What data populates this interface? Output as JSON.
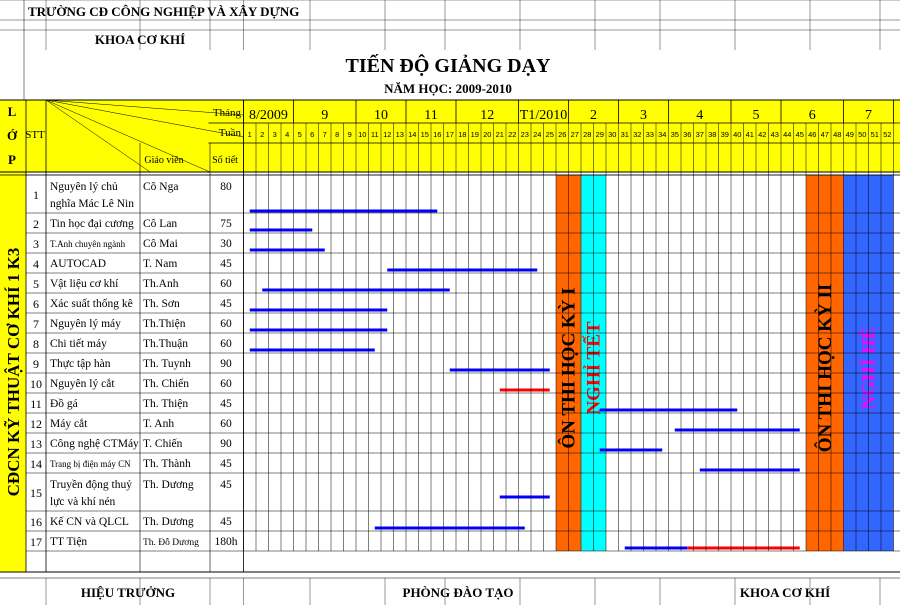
{
  "header": {
    "school": "TRƯỜNG CĐ CÔNG NGHIỆP VÀ XÂY DỰNG",
    "department": "KHOA CƠ KHÍ",
    "title": "TIẾN ĐỘ GIẢNG DẠY",
    "year": "NĂM HỌC: 2009-2010"
  },
  "table_header": {
    "lop_letters": [
      "L",
      "Ớ",
      "P"
    ],
    "stt": "STT",
    "thang": "Tháng",
    "tuan": "Tuần",
    "giao_vien": "Giáo viên",
    "so_tiet": "Số tiết"
  },
  "class_label": "CĐCN KỸ THUẬT CƠ KHÍ 1 K3",
  "months": [
    {
      "label": "8/2009",
      "start_week": 1,
      "end_week": 4
    },
    {
      "label": "9",
      "start_week": 5,
      "end_week": 9
    },
    {
      "label": "10",
      "start_week": 10,
      "end_week": 13
    },
    {
      "label": "11",
      "start_week": 14,
      "end_week": 17
    },
    {
      "label": "12",
      "start_week": 18,
      "end_week": 22
    },
    {
      "label": "T1/2010",
      "start_week": 23,
      "end_week": 26
    },
    {
      "label": "2",
      "start_week": 27,
      "end_week": 30
    },
    {
      "label": "3",
      "start_week": 31,
      "end_week": 34
    },
    {
      "label": "4",
      "start_week": 35,
      "end_week": 39
    },
    {
      "label": "5",
      "start_week": 40,
      "end_week": 43
    },
    {
      "label": "6",
      "start_week": 44,
      "end_week": 48
    },
    {
      "label": "7",
      "start_week": 49,
      "end_week": 52
    }
  ],
  "week_count": 52,
  "courses": [
    {
      "stt": "1",
      "name": [
        "Nguyên lý chủ",
        "nghĩa Mác Lê Nin"
      ],
      "teacher": "Cô Nga",
      "hours": "80",
      "bars": [
        {
          "start": 1.5,
          "end": 16.5,
          "color": "#0000ff"
        }
      ]
    },
    {
      "stt": "2",
      "name": [
        "Tin học đại cương"
      ],
      "teacher": "Cô Lan",
      "hours": "75",
      "bars": [
        {
          "start": 1.5,
          "end": 6.5,
          "color": "#0000ff"
        }
      ]
    },
    {
      "stt": "3",
      "name": [
        "T.Anh chuyên ngành"
      ],
      "teacher": "Cô Mai",
      "hours": "30",
      "bars": [
        {
          "start": 1.5,
          "end": 7.5,
          "color": "#0000ff"
        }
      ]
    },
    {
      "stt": "4",
      "name": [
        "AUTOCAD"
      ],
      "teacher": "T. Nam",
      "hours": "45",
      "bars": [
        {
          "start": 12.5,
          "end": 24.5,
          "color": "#0000ff"
        }
      ]
    },
    {
      "stt": "5",
      "name": [
        "Vật liệu cơ khí"
      ],
      "teacher": "Th.Anh",
      "hours": "60",
      "bars": [
        {
          "start": 2.5,
          "end": 17.5,
          "color": "#0000ff"
        }
      ]
    },
    {
      "stt": "6",
      "name": [
        "Xác suất thống kê"
      ],
      "teacher": "Th. Sơn",
      "hours": "45",
      "bars": [
        {
          "start": 1.5,
          "end": 12.5,
          "color": "#0000ff"
        }
      ]
    },
    {
      "stt": "7",
      "name": [
        "Nguyên lý máy"
      ],
      "teacher": "Th.Thiện",
      "hours": "60",
      "bars": [
        {
          "start": 1.5,
          "end": 12.5,
          "color": "#0000ff"
        }
      ]
    },
    {
      "stt": "8",
      "name": [
        "Chi tiết máy"
      ],
      "teacher": "Th.Thuận",
      "hours": "60",
      "bars": [
        {
          "start": 1.5,
          "end": 11.5,
          "color": "#0000ff"
        }
      ]
    },
    {
      "stt": "9",
      "name": [
        "Thực tập hàn"
      ],
      "teacher": "Th. Tuynh",
      "hours": "90",
      "bars": [
        {
          "start": 17.5,
          "end": 25.5,
          "color": "#0000ff"
        }
      ]
    },
    {
      "stt": "10",
      "name": [
        "Nguyên lý cắt"
      ],
      "teacher": "Th. Chiến",
      "hours": "60",
      "bars": [
        {
          "start": 21.5,
          "end": 25.5,
          "color": "#ff0000"
        }
      ]
    },
    {
      "stt": "11",
      "name": [
        "Đồ gá"
      ],
      "teacher": "Th. Thiện",
      "hours": "45",
      "bars": [
        {
          "start": 29.5,
          "end": 40.5,
          "color": "#0000ff"
        }
      ]
    },
    {
      "stt": "12",
      "name": [
        "Máy cắt"
      ],
      "teacher": "T. Anh",
      "hours": "60",
      "bars": [
        {
          "start": 35.5,
          "end": 45.5,
          "color": "#0000ff"
        }
      ]
    },
    {
      "stt": "13",
      "name": [
        "Công nghệ CTMáy"
      ],
      "teacher": "T. Chiến",
      "hours": "90",
      "bars": [
        {
          "start": 29.5,
          "end": 34.5,
          "color": "#0000ff"
        }
      ]
    },
    {
      "stt": "14",
      "name": [
        "Trang bị điện máy CN"
      ],
      "teacher": "Th. Thành",
      "hours": "45",
      "bars": [
        {
          "start": 37.5,
          "end": 45.5,
          "color": "#0000ff"
        }
      ]
    },
    {
      "stt": "15",
      "name": [
        "Truyền động thuỷ",
        "lực và khí nén"
      ],
      "teacher": "Th. Dương",
      "hours": "45",
      "bars": [
        {
          "start": 21.5,
          "end": 25.5,
          "color": "#0000ff"
        }
      ]
    },
    {
      "stt": "16",
      "name": [
        "Kế CN và QLCL"
      ],
      "teacher": "Th. Dương",
      "hours": "45",
      "bars": [
        {
          "start": 11.5,
          "end": 23.5,
          "color": "#0000ff"
        }
      ]
    },
    {
      "stt": "17",
      "name": [
        "TT Tiện"
      ],
      "teacher": "Th. Đỗ Dương",
      "hours": "180h",
      "bars": [
        {
          "start": 31.5,
          "end": 36.5,
          "color": "#0000ff"
        },
        {
          "start": 36.5,
          "end": 45.5,
          "color": "#ff0000"
        }
      ]
    }
  ],
  "blocks": [
    {
      "label": "ÔN THI HỌC KỲ I",
      "start_week": 26,
      "end_week": 27,
      "fill": "#ff6600",
      "text_color": "#000000"
    },
    {
      "label": "NGHỈ TẾT",
      "start_week": 28,
      "end_week": 29,
      "fill": "#00ffff",
      "text_color": "#ff0000"
    },
    {
      "label": "ÔN THI HỌC KỲ II",
      "start_week": 46,
      "end_week": 48,
      "fill": "#ff6600",
      "text_color": "#000000"
    },
    {
      "label": "NGHỈ HÈ",
      "start_week": 49,
      "end_week": 52,
      "fill": "#3366ff",
      "text_color": "#ff00ff"
    }
  ],
  "footer": {
    "left": "HIỆU TRƯỞNG",
    "middle": "PHÒNG ĐÀO TẠO",
    "right": "KHOA CƠ KHÍ"
  },
  "colors": {
    "header_fill": "#ffff00",
    "grid": "#000000"
  }
}
